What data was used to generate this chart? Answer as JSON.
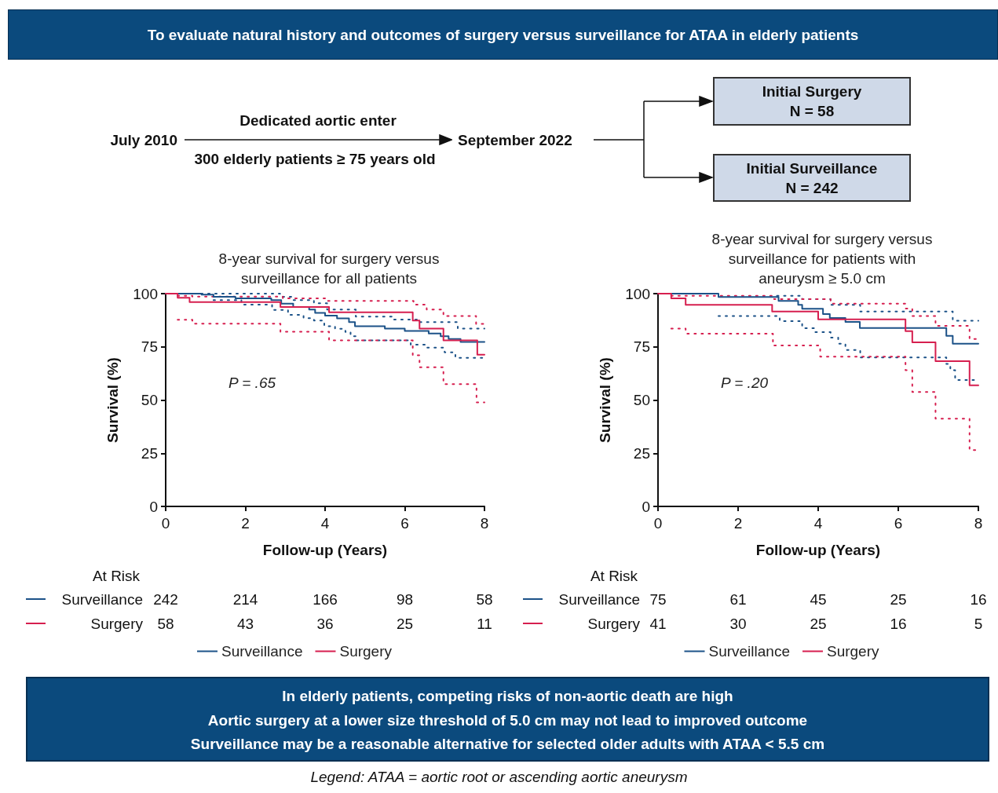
{
  "chart_data": [
    {
      "type": "other",
      "title": "To evaluate natural history and outcomes of surgery versus surveillance for ATAA in elderly patients",
      "annotations": [
        "July 2010",
        "Dedicated aortic enter",
        "300 elderly patients ≥ 75 years old",
        "September 2022",
        "Initial Surgery\nN = 58",
        "Initial Surveillance\nN = 242"
      ]
    },
    {
      "type": "step",
      "title": "8-year survival for surgery versus\nsurveillance for all patients",
      "xlabel": "Follow-up (Years)",
      "ylabel": "Survival (%)",
      "xlim": [
        0,
        8
      ],
      "xticks": [
        0,
        2,
        4,
        6,
        8
      ],
      "ylim": [
        0,
        100
      ],
      "yticks": [
        0,
        25,
        50,
        75,
        100
      ],
      "legend": "bottom",
      "annotations": [
        "P = .65"
      ],
      "series": [
        {
          "name": "Surveillance",
          "color": "#1c5288",
          "x": [
            0,
            0.9,
            1.2,
            1.75,
            2.65,
            2.9,
            3.2,
            3.6,
            3.75,
            4.0,
            4.3,
            4.6,
            4.75,
            5.5,
            6.0,
            6.6,
            6.9,
            7.1,
            7.4,
            8
          ],
          "values": [
            100,
            99.5,
            98.5,
            97.8,
            97,
            95.3,
            93.7,
            92.5,
            91,
            89.7,
            88.4,
            86.6,
            84.7,
            83.6,
            82.5,
            81.3,
            80,
            78.7,
            77.3,
            77.3
          ]
        },
        {
          "name": "Surgery",
          "color": "#d61f4f",
          "x": [
            0,
            0.3,
            0.6,
            2.88,
            4.1,
            6.2,
            6.37,
            6.97,
            7.82,
            8
          ],
          "values": [
            100,
            98.1,
            96,
            93.7,
            91.2,
            87.4,
            83.6,
            78,
            71.3,
            71.3
          ]
        },
        {
          "color": "#1c5288",
          "line_style": "dotted",
          "x": [
            0,
            2.87,
            3.2,
            3.72,
            4.05,
            4.77,
            5.69,
            6.35,
            7.33,
            8
          ],
          "values": [
            100,
            98.5,
            97,
            95.5,
            92.5,
            89.2,
            87.8,
            86.6,
            83.6,
            83.6
          ]
        },
        {
          "color": "#1c5288",
          "line_style": "dotted",
          "x": [
            1.2,
            1.9,
            2.67,
            3.07,
            3.46,
            3.72,
            3.98,
            4.25,
            4.51,
            4.64,
            4.77,
            6.15,
            6.55,
            7.0,
            7.27,
            8
          ],
          "values": [
            97,
            94.8,
            92.3,
            90,
            88.5,
            87.4,
            84.7,
            83.5,
            82,
            80,
            78,
            76,
            74.6,
            72.4,
            69.8,
            69.8
          ]
        },
        {
          "color": "#d61f4f",
          "line_style": "dotted",
          "x": [
            0.3,
            0.67,
            2.94,
            4.05,
            6.22,
            6.55,
            6.97,
            7.79,
            8
          ],
          "values": [
            99,
            98.6,
            97.8,
            96.6,
            94.8,
            92.5,
            89.5,
            85.8,
            85.8
          ]
        },
        {
          "color": "#d61f4f",
          "line_style": "dotted",
          "x": [
            0.3,
            0.67,
            2.88,
            4.1,
            6.2,
            6.37,
            6.97,
            7.8,
            8
          ],
          "values": [
            87.7,
            85.9,
            82.1,
            78,
            71,
            65.4,
            57.5,
            48.9,
            48.9
          ]
        }
      ]
    },
    {
      "type": "step",
      "title": "8-year survival for surgery versus\nsurveillance for patients with\naneurysm ≥ 5.0 cm",
      "xlabel": "Follow-up (Years)",
      "ylabel": "Survival (%)",
      "xlim": [
        0,
        8
      ],
      "xticks": [
        0,
        2,
        4,
        6,
        8
      ],
      "ylim": [
        0,
        100
      ],
      "yticks": [
        0,
        25,
        50,
        75,
        100
      ],
      "legend": "bottom",
      "annotations": [
        "P = .20"
      ],
      "series": [
        {
          "name": "Surveillance",
          "color": "#1c5288",
          "x": [
            0,
            1.51,
            3.01,
            3.5,
            3.6,
            4.12,
            4.29,
            4.68,
            5.04,
            7.2,
            7.36,
            8
          ],
          "values": [
            100,
            98.4,
            96.6,
            94.7,
            92.9,
            90.4,
            88.6,
            86.7,
            83.9,
            80.2,
            76.5,
            76.5
          ]
        },
        {
          "name": "Surgery",
          "color": "#d61f4f",
          "x": [
            0,
            0.33,
            0.69,
            2.85,
            4.0,
            6.18,
            6.35,
            6.93,
            7.78,
            8
          ],
          "values": [
            100,
            97.8,
            94.7,
            91.6,
            87.9,
            82.4,
            77.1,
            68.3,
            56.9,
            56.9
          ]
        },
        {
          "color": "#1c5288",
          "line_style": "dotted",
          "x": [
            2.97,
            3.6,
            4.31,
            5.05,
            7.36,
            8
          ],
          "values": [
            99,
            97.4,
            94.7,
            91.6,
            87.3,
            87.3
          ]
        },
        {
          "color": "#1c5288",
          "line_style": "dotted",
          "x": [
            1.51,
            3.04,
            3.6,
            3.9,
            4.31,
            4.5,
            4.68,
            5.05,
            7.2,
            7.3,
            7.42,
            8
          ],
          "values": [
            89.5,
            87.1,
            83.8,
            81.9,
            79.3,
            76.5,
            73.5,
            70,
            67,
            64,
            59.4,
            59.4
          ]
        },
        {
          "color": "#d61f4f",
          "line_style": "dotted",
          "x": [
            0.33,
            2.9,
            4.31,
            6.18,
            6.35,
            6.93,
            7.78,
            8
          ],
          "values": [
            99,
            97.4,
            95.3,
            93,
            89.5,
            84.9,
            78.7,
            78.7
          ]
        },
        {
          "color": "#d61f4f",
          "line_style": "dotted",
          "x": [
            0.33,
            0.69,
            2.87,
            4.05,
            6.18,
            6.35,
            6.93,
            7.78,
            8
          ],
          "values": [
            83.6,
            81.2,
            75.6,
            70.4,
            64,
            53.8,
            41.2,
            26.5,
            26.5
          ]
        }
      ]
    },
    {
      "type": "other",
      "annotations": [
        "At Risk",
        "Surveillance",
        "242",
        "214",
        "166",
        "98",
        "58",
        "Surgery",
        "58",
        "43",
        "36",
        "25",
        "11"
      ]
    },
    {
      "type": "other",
      "annotations": [
        "At Risk",
        "Surveillance",
        "75",
        "61",
        "45",
        "25",
        "16",
        "Surgery",
        "41",
        "30",
        "25",
        "16",
        "5"
      ]
    },
    {
      "type": "other",
      "annotations": [
        "In elderly patients, competing risks of non-aortic death are high",
        "Aortic surgery at a lower size threshold of 5.0 cm may not lead to improved outcome",
        "Surveillance may be a reasonable alternative for selected older adults with ATAA < 5.5 cm",
        "Legend: ATAA = aortic root or ascending aortic aneurysm"
      ]
    }
  ]
}
